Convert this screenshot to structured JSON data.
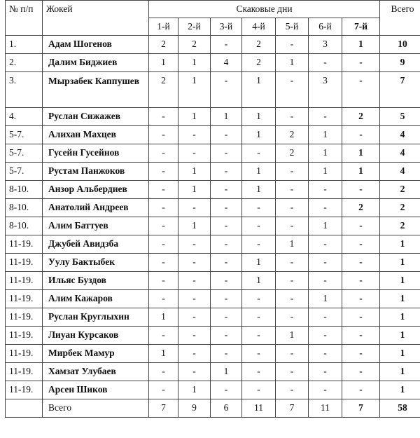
{
  "header": {
    "num": "№ п/п",
    "jockey": "Жокей",
    "days_group": "Скаковые дни",
    "total": "Всего",
    "days": [
      "1-й",
      "2-й",
      "3-й",
      "4-й",
      "5-й",
      "6-й",
      "7-й"
    ]
  },
  "rows": [
    {
      "place": "1.",
      "name": "Адам Шогенов",
      "days": [
        "2",
        "2",
        "-",
        "2",
        "-",
        "3",
        "1"
      ],
      "total": "10"
    },
    {
      "place": "2.",
      "name": "Далим Биджиев",
      "days": [
        "1",
        "1",
        "4",
        "2",
        "1",
        "-",
        "-"
      ],
      "total": "9"
    },
    {
      "place": "3.",
      "name": "Мырзабек Каппушев",
      "days": [
        "2",
        "1",
        "-",
        "1",
        "-",
        "3",
        "-"
      ],
      "total": "7"
    },
    {
      "place": "4.",
      "name": "Руслан Сижажев",
      "days": [
        "-",
        "1",
        "1",
        "1",
        "-",
        "-",
        "2"
      ],
      "total": "5"
    },
    {
      "place": "5-7.",
      "name": "Алихан Махцев",
      "days": [
        "-",
        "-",
        "-",
        "1",
        "2",
        "1",
        "-"
      ],
      "total": "4"
    },
    {
      "place": "5-7.",
      "name": "Гусейн Гусейнов",
      "days": [
        "-",
        "-",
        "-",
        "-",
        "2",
        "1",
        "1"
      ],
      "total": "4"
    },
    {
      "place": "5-7.",
      "name": "Рустам Панжоков",
      "days": [
        "-",
        "1",
        "-",
        "1",
        "-",
        "1",
        "1"
      ],
      "total": "4"
    },
    {
      "place": "8-10.",
      "name": "Анзор Альбердиев",
      "days": [
        "-",
        "1",
        "-",
        "1",
        "-",
        "-",
        "-"
      ],
      "total": "2"
    },
    {
      "place": "8-10.",
      "name": "Анатолий Андреев",
      "days": [
        "-",
        "-",
        "-",
        "-",
        "-",
        "-",
        "2"
      ],
      "total": "2"
    },
    {
      "place": "8-10.",
      "name": "Алим Баттуев",
      "days": [
        "-",
        "1",
        "-",
        "-",
        "-",
        "1",
        "-"
      ],
      "total": "2"
    },
    {
      "place": "11-19.",
      "name": "Джубей Авидзба",
      "days": [
        "-",
        "-",
        "-",
        "-",
        "1",
        "-",
        "-"
      ],
      "total": "1"
    },
    {
      "place": "11-19.",
      "name": "Уулу Бактыбек",
      "days": [
        "-",
        "-",
        "-",
        "1",
        "-",
        "-",
        "-"
      ],
      "total": "1"
    },
    {
      "place": "11-19.",
      "name": "Ильяс Буздов",
      "days": [
        "-",
        "-",
        "-",
        "1",
        "-",
        "-",
        "-"
      ],
      "total": "1"
    },
    {
      "place": "11-19.",
      "name": "Алим Кажаров",
      "days": [
        "-",
        "-",
        "-",
        "-",
        "-",
        "1",
        "-"
      ],
      "total": "1"
    },
    {
      "place": "11-19.",
      "name": "Руслан Круглыхин",
      "days": [
        "1",
        "-",
        "-",
        "-",
        "-",
        "-",
        "-"
      ],
      "total": "1"
    },
    {
      "place": "11-19.",
      "name": "Лиуан Курсаков",
      "days": [
        "-",
        "-",
        "-",
        "-",
        "1",
        "-",
        "-"
      ],
      "total": "1"
    },
    {
      "place": "11-19.",
      "name": "Мирбек Мамур",
      "days": [
        "1",
        "-",
        "-",
        "-",
        "-",
        "-",
        "-"
      ],
      "total": "1"
    },
    {
      "place": "11-19.",
      "name": "Хамзат Улубаев",
      "days": [
        "-",
        "-",
        "1",
        "-",
        "-",
        "-",
        "-"
      ],
      "total": "1"
    },
    {
      "place": "11-19.",
      "name": "Арсен Шиков",
      "days": [
        "-",
        "1",
        "-",
        "-",
        "-",
        "-",
        "-"
      ],
      "total": "1"
    }
  ],
  "totals": {
    "label": "Всего",
    "days": [
      "7",
      "9",
      "6",
      "11",
      "7",
      "11",
      "7"
    ],
    "total": "58"
  }
}
